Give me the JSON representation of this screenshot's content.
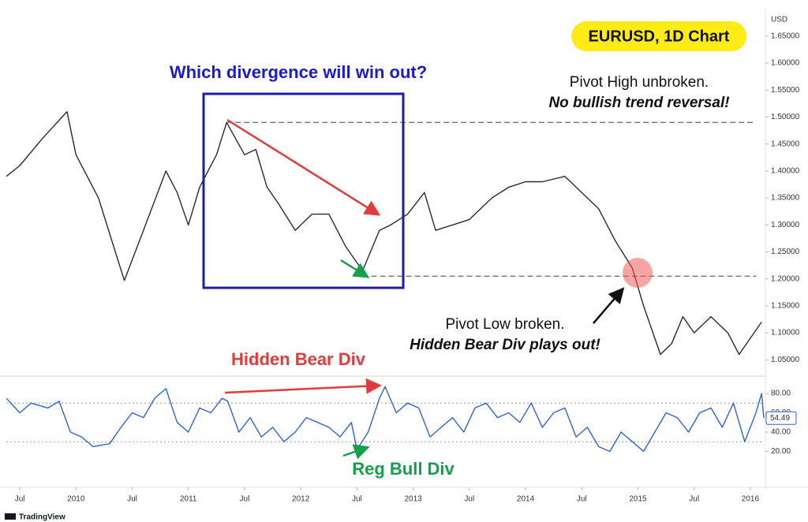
{
  "chart_data": [
    {
      "type": "line",
      "title": "EURUSD, 1D Chart",
      "y_unit": "USD",
      "color": "#2a2a2a",
      "annotations": [
        "Which divergence will win out?",
        "Pivot High unbroken.",
        "No bullish trend reversal!",
        "Pivot Low broken.",
        "Hidden Bear Div plays out!"
      ],
      "x": [
        2009.38,
        2009.5,
        2009.7,
        2009.92,
        2010.0,
        2010.2,
        2010.35,
        2010.43,
        2010.6,
        2010.8,
        2010.9,
        2011.0,
        2011.1,
        2011.25,
        2011.34,
        2011.5,
        2011.6,
        2011.7,
        2011.8,
        2011.95,
        2012.1,
        2012.25,
        2012.4,
        2012.55,
        2012.7,
        2012.8,
        2012.95,
        2013.1,
        2013.2,
        2013.35,
        2013.5,
        2013.7,
        2013.85,
        2014.0,
        2014.15,
        2014.35,
        2014.5,
        2014.65,
        2014.8,
        2014.95,
        2015.05,
        2015.2,
        2015.3,
        2015.4,
        2015.5,
        2015.65,
        2015.8,
        2015.9,
        2016.0,
        2016.1
      ],
      "values": [
        1.39,
        1.41,
        1.46,
        1.51,
        1.43,
        1.35,
        1.25,
        1.197,
        1.29,
        1.4,
        1.36,
        1.3,
        1.37,
        1.43,
        1.49,
        1.43,
        1.44,
        1.37,
        1.34,
        1.29,
        1.32,
        1.32,
        1.26,
        1.215,
        1.29,
        1.3,
        1.32,
        1.36,
        1.29,
        1.3,
        1.31,
        1.35,
        1.37,
        1.38,
        1.38,
        1.39,
        1.36,
        1.33,
        1.27,
        1.22,
        1.15,
        1.06,
        1.08,
        1.13,
        1.1,
        1.13,
        1.1,
        1.06,
        1.09,
        1.12
      ],
      "hlines": [
        {
          "y": 1.49,
          "x0": 2011.34
        },
        {
          "y": 1.205,
          "x0": 2012.55
        }
      ],
      "xlim": [
        2009.38,
        2016.12
      ],
      "ylim": [
        1.03,
        1.695
      ],
      "yticks": [
        {
          "value": 1.05,
          "label": "1.05000"
        },
        {
          "value": 1.1,
          "label": "1.10000"
        },
        {
          "value": 1.15,
          "label": "1.15000"
        },
        {
          "value": 1.2,
          "label": "1.20000"
        },
        {
          "value": 1.25,
          "label": "1.25000"
        },
        {
          "value": 1.3,
          "label": "1.30000"
        },
        {
          "value": 1.35,
          "label": "1.35000"
        },
        {
          "value": 1.4,
          "label": "1.40000"
        },
        {
          "value": 1.45,
          "label": "1.45000"
        },
        {
          "value": 1.5,
          "label": "1.50000"
        },
        {
          "value": 1.55,
          "label": "1.55000"
        },
        {
          "value": 1.6,
          "label": "1.60000"
        },
        {
          "value": 1.65,
          "label": "1.65000"
        }
      ]
    },
    {
      "type": "line",
      "color": "#2f63d6",
      "annotations": [
        "Hidden Bear Div",
        "Reg Bull Div"
      ],
      "x": [
        2009.38,
        2009.5,
        2009.6,
        2009.75,
        2009.85,
        2009.95,
        2010.05,
        2010.15,
        2010.3,
        2010.4,
        2010.5,
        2010.6,
        2010.7,
        2010.8,
        2010.9,
        2011.0,
        2011.1,
        2011.2,
        2011.3,
        2011.35,
        2011.45,
        2011.55,
        2011.65,
        2011.75,
        2011.85,
        2011.95,
        2012.05,
        2012.15,
        2012.25,
        2012.35,
        2012.45,
        2012.5,
        2012.6,
        2012.7,
        2012.75,
        2012.85,
        2012.95,
        2013.05,
        2013.15,
        2013.25,
        2013.35,
        2013.45,
        2013.55,
        2013.65,
        2013.75,
        2013.85,
        2013.95,
        2014.05,
        2014.15,
        2014.25,
        2014.35,
        2014.45,
        2014.55,
        2014.65,
        2014.75,
        2014.85,
        2014.95,
        2015.05,
        2015.15,
        2015.25,
        2015.35,
        2015.45,
        2015.55,
        2015.65,
        2015.75,
        2015.85,
        2015.95,
        2016.05,
        2016.1,
        2016.12
      ],
      "values": [
        75,
        60,
        70,
        65,
        72,
        40,
        35,
        25,
        28,
        45,
        60,
        55,
        75,
        85,
        50,
        40,
        65,
        60,
        75,
        72,
        40,
        55,
        35,
        45,
        30,
        40,
        55,
        50,
        45,
        35,
        50,
        22,
        40,
        75,
        87,
        60,
        70,
        65,
        35,
        45,
        55,
        40,
        65,
        70,
        55,
        60,
        50,
        70,
        45,
        60,
        65,
        35,
        45,
        25,
        20,
        40,
        30,
        20,
        40,
        60,
        55,
        40,
        60,
        65,
        45,
        70,
        30,
        60,
        80,
        54.49
      ],
      "levels": [
        70,
        30
      ],
      "xlim": [
        2009.38,
        2016.12
      ],
      "ylim": [
        0,
        95.5
      ],
      "yticks": [
        {
          "value": 20,
          "label": "20.00"
        },
        {
          "value": 40,
          "label": "40.00"
        },
        {
          "value": 60,
          "label": "60.00"
        },
        {
          "value": 80,
          "label": "80.00"
        }
      ],
      "xticks": [
        {
          "value": 2009.5,
          "label": "Jul"
        },
        2010,
        {
          "value": 2010.5,
          "label": "Jul"
        },
        2011,
        {
          "value": 2011.5,
          "label": "Jul"
        },
        2012,
        {
          "value": 2012.5,
          "label": "Jul"
        },
        2013,
        {
          "value": 2013.5,
          "label": "Jul"
        },
        2014,
        {
          "value": 2014.5,
          "label": "Jul"
        },
        2015,
        {
          "value": 2015.5,
          "label": "Jul"
        },
        2016
      ]
    }
  ],
  "footer": {
    "brand": "TradingView"
  }
}
